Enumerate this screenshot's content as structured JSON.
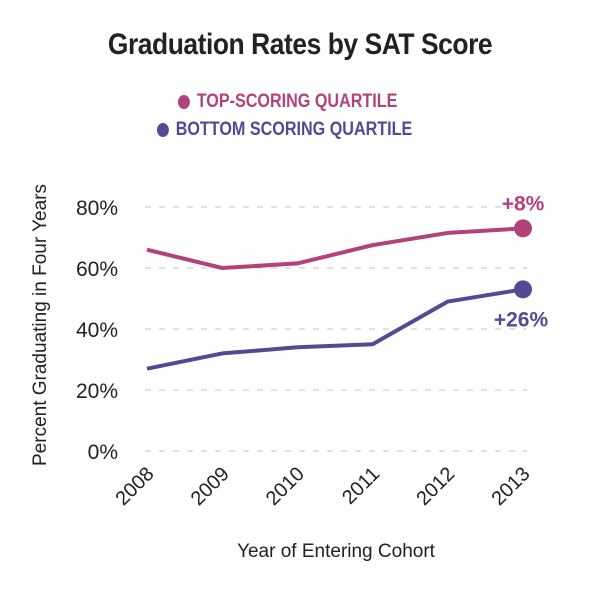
{
  "chart_data": {
    "type": "line",
    "title": "Graduation Rates by SAT Score",
    "xlabel": "Year of Entering Cohort",
    "ylabel": "Percent Graduating in Four Years",
    "x": [
      "2008",
      "2009",
      "2010",
      "2011",
      "2012",
      "2013"
    ],
    "yticks": [
      "0%",
      "20%",
      "40%",
      "60%",
      "80%"
    ],
    "ylim": [
      0,
      80
    ],
    "grid": true,
    "legend_position": "top-center",
    "series": [
      {
        "name": "TOP-SCORING QUARTILE",
        "color": "#b2437a",
        "values": [
          66,
          60,
          61.5,
          67.5,
          71.5,
          73
        ],
        "end_label": "+8%"
      },
      {
        "name": "BOTTOM SCORING QUARTILE",
        "color": "#524a94",
        "values": [
          27,
          32,
          34,
          35,
          49,
          53
        ],
        "end_label": "+26%"
      }
    ]
  }
}
